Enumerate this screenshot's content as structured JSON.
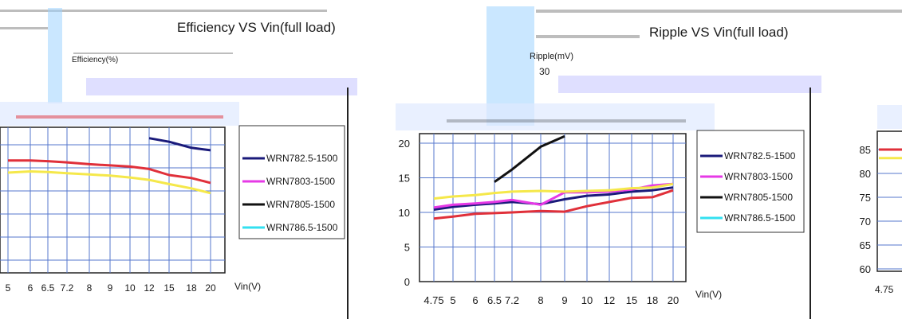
{
  "colors": {
    "navy": "#1a1a7a",
    "magenta": "#e639e6",
    "black": "#111111",
    "cyan": "#33e0f0",
    "red": "#e0303a",
    "yellow": "#f5e84a",
    "grid": "#5577cc",
    "band": "#bfe0ff"
  },
  "chart_data": [
    {
      "type": "line",
      "title": "Efficiency VS Vin(full load)",
      "ylabel": "Efficiency(%)",
      "xlabel": "Vin(V)",
      "x_ticks": [
        "5",
        "6",
        "6.5",
        "7.2",
        "8",
        "9",
        "10",
        "12",
        "15",
        "18",
        "20"
      ],
      "legend_labels": [
        "WRN782.5-1500",
        "WRN7803-1500",
        "WRN7805-1500",
        "WRN786.5-1500"
      ],
      "series": [
        {
          "color": "#1a1a7a",
          "values": [
            null,
            null,
            null,
            null,
            null,
            null,
            null,
            84.2,
            83.6,
            82.6,
            82.2
          ]
        },
        {
          "color": "#e0303a",
          "values": [
            80.5,
            80.5,
            80.4,
            80.2,
            79.9,
            79.7,
            79.5,
            79.1,
            78.1,
            77.6,
            76.8
          ]
        },
        {
          "color": "#f5e84a",
          "values": [
            78.5,
            78.7,
            78.6,
            78.4,
            78.2,
            78.0,
            77.7,
            77.3,
            76.6,
            75.9,
            75.1
          ]
        }
      ]
    },
    {
      "type": "line",
      "title": "Ripple VS Vin(full load)",
      "ylabel": "Ripple(mV)",
      "xlabel": "Vin(V)",
      "x_ticks": [
        "4.75",
        "5",
        "6",
        "6.5",
        "7.2",
        "8",
        "9",
        "10",
        "12",
        "15",
        "18",
        "20"
      ],
      "y_ticks": [
        "0",
        "5",
        "10",
        "15",
        "20"
      ],
      "top_tick": "30",
      "legend_labels": [
        "WRN782.5-1500",
        "WRN7803-1500",
        "WRN7805-1500",
        "WRN786.5-1500"
      ],
      "series": [
        {
          "name": "WRN782.5-1500",
          "color": "#1a1a7a",
          "values": [
            10.4,
            10.8,
            11.1,
            11.3,
            11.5,
            11.2,
            11.9,
            12.4,
            12.6,
            13.0,
            13.2,
            13.6
          ]
        },
        {
          "name": "WRN7803-1500",
          "color": "#e639e6",
          "values": [
            10.7,
            11.1,
            11.3,
            11.5,
            11.8,
            11.1,
            12.9,
            12.9,
            13.0,
            13.3,
            13.9,
            14.1
          ]
        },
        {
          "name": "WRN7805-1500",
          "color": "#111111",
          "values": [
            null,
            null,
            null,
            14.4,
            16.2,
            19.5,
            21.0,
            null,
            null,
            null,
            null,
            null
          ]
        },
        {
          "name": "red",
          "color": "#e0303a",
          "values": [
            9.1,
            9.4,
            9.8,
            9.9,
            10.0,
            10.2,
            10.1,
            10.9,
            11.5,
            12.1,
            12.2,
            13.2
          ]
        },
        {
          "name": "yellow",
          "color": "#f5e84a",
          "values": [
            12.0,
            12.3,
            12.5,
            12.8,
            13.0,
            13.1,
            13.0,
            13.1,
            13.2,
            13.5,
            13.6,
            14.1
          ]
        }
      ]
    },
    {
      "type": "line",
      "y_ticks": [
        "85",
        "80",
        "75",
        "70",
        "65",
        "60"
      ],
      "x_ticks": [
        "4.75"
      ],
      "series": [
        {
          "color": "#e0303a",
          "values": [
            85
          ]
        },
        {
          "color": "#f5e84a",
          "values": [
            83.2
          ]
        }
      ]
    }
  ]
}
